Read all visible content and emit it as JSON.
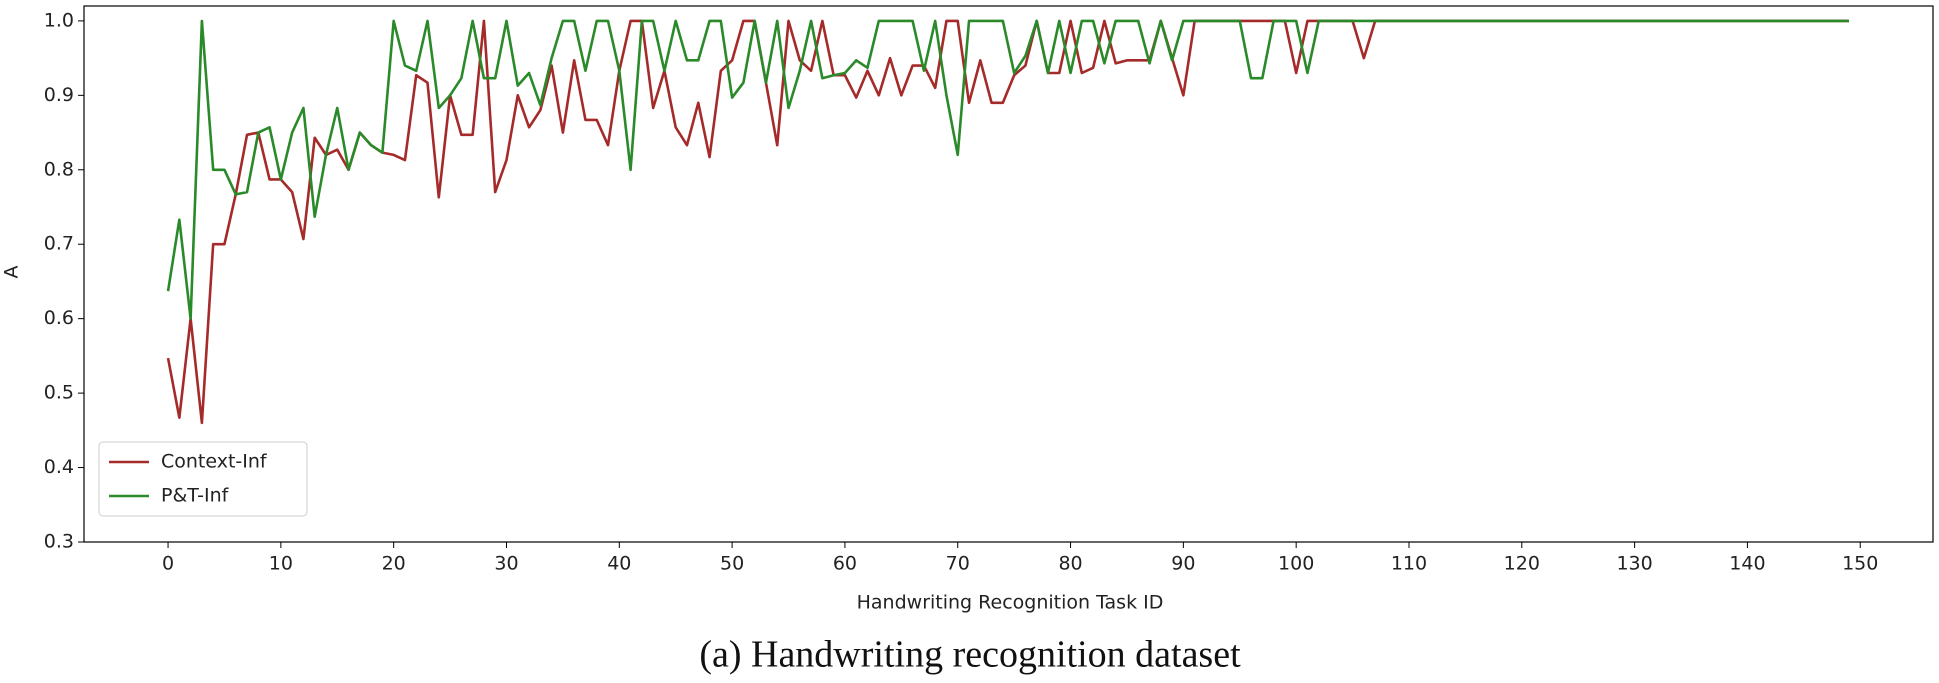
{
  "chart_data": {
    "type": "line",
    "xlabel": "Handwriting Recognition Task ID",
    "ylabel": "A",
    "caption": "(a)  Handwriting recognition dataset",
    "legend": "lower left",
    "xlim": [
      -7.45,
      156.45
    ],
    "ylim": [
      0.3,
      1.02
    ],
    "xticks": [
      0,
      10,
      20,
      30,
      40,
      50,
      60,
      70,
      80,
      90,
      100,
      110,
      120,
      130,
      140,
      150
    ],
    "yticks": [
      0.3,
      0.4,
      0.5,
      0.6,
      0.7,
      0.8,
      0.9,
      {
        "value": 1,
        "label": "1.0"
      }
    ],
    "x": [
      0,
      1,
      2,
      3,
      4,
      5,
      6,
      7,
      8,
      9,
      10,
      11,
      12,
      13,
      14,
      15,
      16,
      17,
      18,
      19,
      20,
      21,
      22,
      23,
      24,
      25,
      26,
      27,
      28,
      29,
      30,
      31,
      32,
      33,
      34,
      35,
      36,
      37,
      38,
      39,
      40,
      41,
      42,
      43,
      44,
      45,
      46,
      47,
      48,
      49,
      50,
      51,
      52,
      53,
      54,
      55,
      56,
      57,
      58,
      59,
      60,
      61,
      62,
      63,
      64,
      65,
      66,
      67,
      68,
      69,
      70,
      71,
      72,
      73,
      74,
      75,
      76,
      77,
      78,
      79,
      80,
      81,
      82,
      83,
      84,
      85,
      86,
      87,
      88,
      89,
      90,
      91,
      92,
      93,
      94,
      95,
      96,
      97,
      98,
      99,
      100,
      101,
      102,
      103,
      104,
      105,
      106,
      107,
      108,
      109,
      110,
      111,
      112,
      113,
      114,
      115,
      116,
      117,
      118,
      119,
      120,
      121,
      122,
      123,
      124,
      125,
      126,
      127,
      128,
      129,
      130,
      131,
      132,
      133,
      134,
      135,
      136,
      137,
      138,
      139,
      140,
      141,
      142,
      143,
      144,
      145,
      146,
      147,
      148,
      149
    ],
    "series": [
      {
        "name": "Context-Inf",
        "color": "#a52a2a",
        "values": [
          0.547,
          0.467,
          0.6,
          0.46,
          0.7,
          0.7,
          0.767,
          0.847,
          0.85,
          0.787,
          0.787,
          0.77,
          0.707,
          0.843,
          0.82,
          0.827,
          0.8,
          0.85,
          0.833,
          0.823,
          0.82,
          0.813,
          0.927,
          0.917,
          0.763,
          0.9,
          0.847,
          0.847,
          1,
          0.77,
          0.813,
          0.9,
          0.857,
          0.88,
          0.94,
          0.85,
          0.947,
          0.867,
          0.867,
          0.833,
          0.933,
          1,
          1,
          0.883,
          0.933,
          0.857,
          0.833,
          0.89,
          0.817,
          0.933,
          0.947,
          1,
          1,
          0.917,
          0.833,
          1,
          0.947,
          0.933,
          1,
          0.927,
          0.927,
          0.897,
          0.933,
          0.9,
          0.95,
          0.9,
          0.94,
          0.94,
          0.91,
          1,
          1,
          0.89,
          0.947,
          0.89,
          0.89,
          0.927,
          0.94,
          1,
          0.93,
          0.93,
          1,
          0.93,
          0.937,
          1,
          0.943,
          0.947,
          0.947,
          0.947,
          1,
          0.95,
          0.9,
          1,
          1,
          1,
          1,
          1,
          1,
          1,
          1,
          1,
          0.93,
          1,
          1,
          1,
          1,
          1,
          0.95,
          1,
          1,
          1,
          1,
          1,
          1,
          1,
          1,
          1,
          1,
          1,
          1,
          1,
          1,
          1,
          1,
          1,
          1,
          1,
          1,
          1,
          1,
          1,
          1,
          1,
          1,
          1,
          1,
          1,
          1,
          1,
          1,
          1,
          1,
          1,
          1,
          1,
          1,
          1,
          1,
          1,
          1,
          1
        ]
      },
      {
        "name": "P&T-Inf",
        "color": "#2a8a2a",
        "values": [
          0.637,
          0.733,
          0.6,
          1,
          0.8,
          0.8,
          0.767,
          0.77,
          0.85,
          0.857,
          0.787,
          0.85,
          0.883,
          0.737,
          0.82,
          0.883,
          0.8,
          0.85,
          0.833,
          0.823,
          1,
          0.94,
          0.933,
          1,
          0.883,
          0.9,
          0.923,
          1,
          0.923,
          0.923,
          1,
          0.913,
          0.93,
          0.887,
          0.95,
          1,
          1,
          0.933,
          1,
          1,
          0.933,
          0.8,
          1,
          1,
          0.933,
          1,
          0.947,
          0.947,
          1,
          1,
          0.897,
          0.917,
          1,
          0.917,
          1,
          0.883,
          0.933,
          1,
          0.923,
          0.927,
          0.93,
          0.947,
          0.937,
          1,
          1,
          1,
          1,
          0.933,
          1,
          0.9,
          0.82,
          1,
          1,
          1,
          1,
          0.93,
          0.953,
          1,
          0.93,
          1,
          0.93,
          1,
          1,
          0.943,
          1,
          1,
          1,
          0.943,
          1,
          0.947,
          1,
          1,
          1,
          1,
          1,
          1,
          0.923,
          0.923,
          1,
          1,
          1,
          0.93,
          1,
          1,
          1,
          1,
          1,
          1,
          1,
          1,
          1,
          1,
          1,
          1,
          1,
          1,
          1,
          1,
          1,
          1,
          1,
          1,
          1,
          1,
          1,
          1,
          1,
          1,
          1,
          1,
          1,
          1,
          1,
          1,
          1,
          1,
          1,
          1,
          1,
          1,
          1,
          1,
          1,
          1,
          1,
          1,
          1,
          1,
          1,
          1
        ]
      }
    ]
  }
}
